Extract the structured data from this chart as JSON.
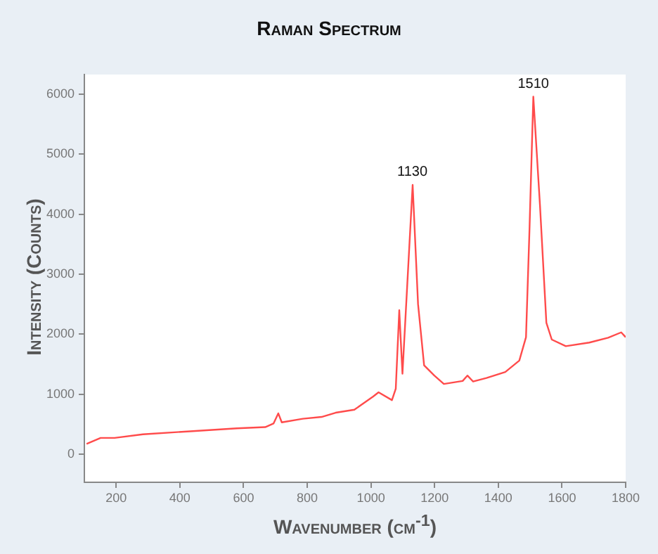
{
  "chart_data": {
    "type": "line",
    "title": "Raman Spectrum",
    "xlabel": "Wavenumber (cm$^{-1}$)",
    "ylabel": "Intensity (Counts)",
    "xlim": [
      100,
      1800
    ],
    "xticks": [
      200,
      400,
      600,
      800,
      1000,
      1200,
      1400,
      1600,
      1800
    ],
    "ylim": [
      -470,
      6330
    ],
    "yticks": [
      0,
      1000,
      2000,
      3000,
      4000,
      5000,
      6000
    ],
    "grid": false,
    "legend": false,
    "marker": "none",
    "line_style": "solid",
    "annotations": [
      {
        "text": "1130",
        "x": 1130,
        "y": 4490
      },
      {
        "text": "1510",
        "x": 1510,
        "y": 5960
      }
    ],
    "series": [
      {
        "color": "#ff4b4b",
        "x": [
          107,
          151,
          195,
          284,
          432,
          579,
          668,
          694,
          709,
          720,
          786,
          845,
          889,
          948,
          1007,
          1024,
          1066,
          1078,
          1089,
          1099,
          1131,
          1148,
          1167,
          1199,
          1229,
          1288,
          1303,
          1321,
          1363,
          1422,
          1466,
          1487,
          1498,
          1510,
          1531,
          1551,
          1568,
          1612,
          1686,
          1745,
          1786,
          1800
        ],
        "values": [
          170,
          270,
          270,
          330,
          380,
          430,
          450,
          510,
          680,
          530,
          590,
          620,
          690,
          740,
          960,
          1030,
          900,
          1090,
          2400,
          1340,
          4490,
          2500,
          1480,
          1310,
          1170,
          1220,
          1310,
          1210,
          1270,
          1370,
          1560,
          1950,
          3750,
          5960,
          4140,
          2190,
          1910,
          1800,
          1860,
          1940,
          2030,
          1950
        ]
      }
    ]
  }
}
